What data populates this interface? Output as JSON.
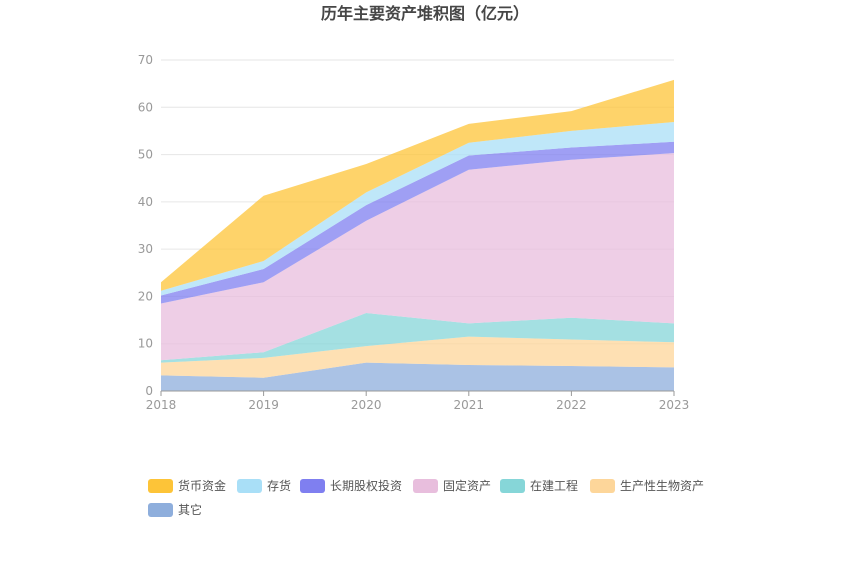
{
  "chart_data": {
    "type": "area",
    "stacked": true,
    "title": "历年主要资产堆积图（亿元）",
    "xlabel": "",
    "ylabel": "",
    "x": [
      "2018",
      "2019",
      "2020",
      "2021",
      "2022",
      "2023"
    ],
    "ylim": [
      0,
      70
    ],
    "yticks": [
      "0",
      "10",
      "20",
      "30",
      "40",
      "50",
      "60",
      "70"
    ],
    "grid": true,
    "legend_position": "bottom",
    "series": [
      {
        "name": "其它",
        "color": "#8eaedc",
        "values": [
          3.3,
          2.8,
          6.0,
          5.5,
          5.3,
          5.0
        ]
      },
      {
        "name": "生产性生物资产",
        "color": "#fdd69a",
        "values": [
          2.7,
          4.2,
          3.5,
          6.0,
          5.6,
          5.3
        ]
      },
      {
        "name": "在建工程",
        "color": "#86d6d8",
        "values": [
          0.5,
          1.2,
          7.0,
          2.8,
          4.6,
          4.0
        ]
      },
      {
        "name": "固定资产",
        "color": "#e8bedd",
        "values": [
          12.0,
          14.8,
          19.5,
          32.5,
          33.4,
          36.0
        ]
      },
      {
        "name": "长期股权投资",
        "color": "#7f7ff0",
        "values": [
          1.7,
          2.8,
          3.3,
          3.0,
          2.6,
          2.4
        ]
      },
      {
        "name": "存货",
        "color": "#a9dff7",
        "values": [
          1.0,
          1.7,
          2.7,
          2.7,
          3.5,
          4.2
        ]
      },
      {
        "name": "货币资金",
        "color": "#fdc438",
        "values": [
          1.8,
          13.8,
          6.0,
          4.0,
          4.2,
          8.9
        ]
      }
    ],
    "legend_order": [
      "货币资金",
      "存货",
      "长期股权投资",
      "固定资产",
      "在建工程",
      "生产性生物资产",
      "其它"
    ]
  }
}
